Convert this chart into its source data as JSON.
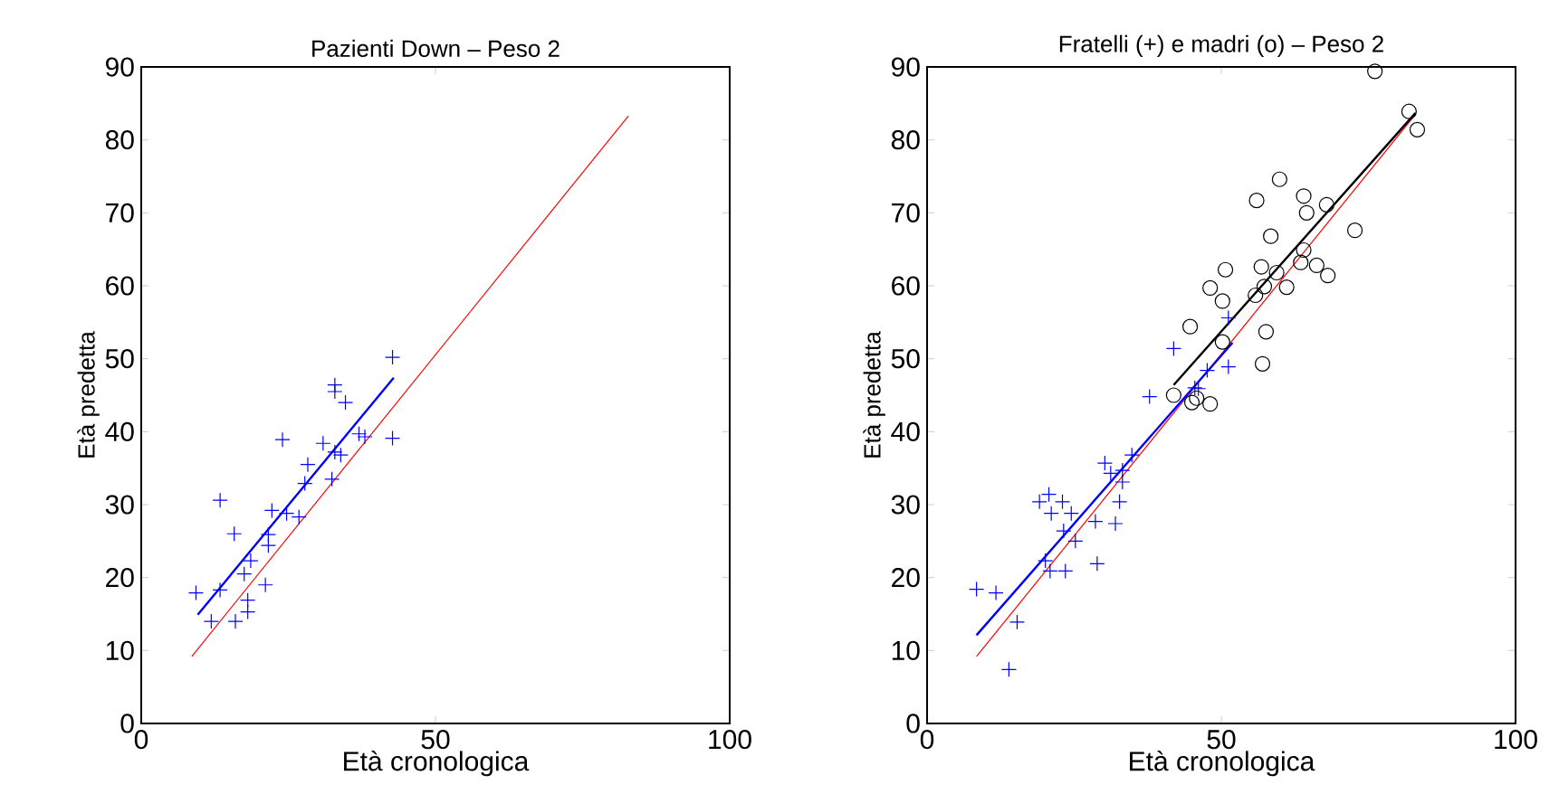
{
  "chart_data": [
    {
      "type": "scatter",
      "title": "Pazienti Down – Peso 2",
      "xlabel": "Età cronologica",
      "ylabel": "Età predetta",
      "xlim": [
        0,
        100
      ],
      "ylim": [
        0,
        90
      ],
      "xticks": [
        0,
        50,
        100
      ],
      "yticks": [
        0,
        10,
        20,
        30,
        40,
        50,
        60,
        70,
        80,
        90
      ],
      "grid": false,
      "series": [
        {
          "marker": "cross",
          "color": "#0000ff",
          "x": [
            42.7,
            32.9,
            32.9,
            34.7,
            42.7,
            37.0,
            38.0,
            24.0,
            30.9,
            32.9,
            33.9,
            28.3,
            32.4,
            27.8,
            13.4,
            22.2,
            24.7,
            26.8,
            15.8,
            21.6,
            21.6,
            18.6,
            17.5,
            21.1,
            9.3,
            13.4,
            18.1,
            18.1,
            11.9,
            16.0
          ],
          "values": [
            50.2,
            46.4,
            45.5,
            44.0,
            39.1,
            39.7,
            39.3,
            38.9,
            38.4,
            37.2,
            36.8,
            35.5,
            33.5,
            32.9,
            30.6,
            29.2,
            28.8,
            28.3,
            26.0,
            25.9,
            24.4,
            22.3,
            20.5,
            19.0,
            17.9,
            18.3,
            16.9,
            15.3,
            14.0,
            14.0
          ]
        },
        {
          "type": "line",
          "marker": "none",
          "color": "#ff0000",
          "x": [
            8.6,
            82.8
          ],
          "values": [
            9.2,
            83.3
          ]
        },
        {
          "type": "line",
          "marker": "none",
          "color": "#0000ff",
          "x": [
            9.6,
            42.9
          ],
          "values": [
            14.9,
            47.4
          ]
        }
      ]
    },
    {
      "type": "scatter",
      "title": "Fratelli (+) e madri (o) – Peso 2",
      "xlabel": "Età cronologica",
      "ylabel": "Età predetta",
      "xlim": [
        0,
        100
      ],
      "ylim": [
        0,
        90
      ],
      "xticks": [
        0,
        50,
        100
      ],
      "yticks": [
        0,
        10,
        20,
        30,
        40,
        50,
        60,
        70,
        80,
        90
      ],
      "grid": false,
      "series": [
        {
          "marker": "cross",
          "color": "#0000ff",
          "x": [
            8.4,
            11.7,
            15.3,
            13.9,
            19.1,
            20.7,
            23.0,
            21.1,
            24.5,
            23.2,
            25.2,
            20.1,
            20.9,
            23.5,
            28.9,
            28.6,
            32.0,
            32.7,
            30.2,
            31.2,
            33.2,
            33.2,
            34.8,
            37.8,
            41.9,
            46.1,
            47.6,
            51.2,
            51.2,
            45.5
          ],
          "values": [
            18.4,
            17.9,
            13.9,
            7.4,
            30.4,
            31.4,
            30.4,
            28.8,
            28.8,
            26.4,
            25.0,
            22.3,
            20.9,
            20.9,
            21.9,
            27.7,
            27.4,
            30.4,
            35.7,
            34.3,
            34.7,
            33.1,
            36.8,
            44.8,
            51.4,
            45.9,
            48.4,
            48.9,
            55.6,
            46.0
          ]
        },
        {
          "marker": "circle",
          "color": "#000000",
          "x": [
            76.1,
            81.9,
            83.3,
            59.9,
            56.0,
            64.0,
            64.5,
            67.9,
            58.4,
            72.7,
            50.7,
            56.8,
            64.0,
            63.5,
            66.2,
            68.1,
            59.4,
            57.3,
            61.1,
            48.1,
            50.2,
            55.8,
            44.7,
            57.6,
            50.2,
            57.0,
            41.9,
            45.0,
            48.1,
            45.8
          ],
          "values": [
            89.4,
            83.9,
            81.4,
            74.6,
            71.7,
            72.3,
            70.0,
            71.1,
            66.8,
            67.6,
            62.2,
            62.6,
            64.9,
            63.2,
            62.8,
            61.4,
            61.8,
            59.9,
            59.8,
            59.7,
            57.9,
            58.7,
            54.4,
            53.7,
            52.3,
            49.3,
            45.0,
            44.0,
            43.8,
            44.6
          ]
        },
        {
          "type": "line",
          "marker": "none",
          "color": "#ff0000",
          "x": [
            8.4,
            83.0
          ],
          "values": [
            9.2,
            83.5
          ]
        },
        {
          "type": "line",
          "marker": "none",
          "color": "#0000ff",
          "x": [
            8.4,
            51.9
          ],
          "values": [
            12.1,
            52.2
          ]
        },
        {
          "type": "line",
          "marker": "none",
          "color": "#000000",
          "x": [
            41.9,
            83.0
          ],
          "values": [
            46.4,
            83.7
          ]
        }
      ]
    }
  ]
}
